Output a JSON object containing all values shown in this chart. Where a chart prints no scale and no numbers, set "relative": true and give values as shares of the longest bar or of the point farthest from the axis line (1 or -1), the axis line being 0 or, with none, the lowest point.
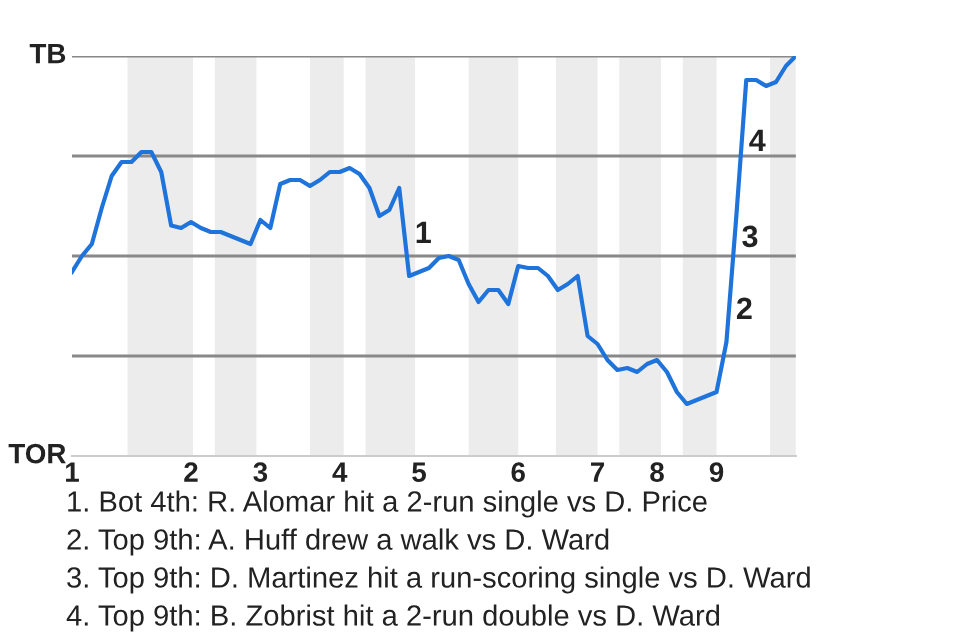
{
  "chart_data": {
    "type": "line",
    "relative": true,
    "categories": [
      "1",
      null,
      null,
      null,
      null,
      null,
      null,
      null,
      null,
      null,
      null,
      null,
      "2",
      null,
      null,
      null,
      null,
      null,
      null,
      "3",
      null,
      null,
      null,
      null,
      null,
      null,
      null,
      "4",
      null,
      null,
      null,
      null,
      null,
      null,
      null,
      "5",
      null,
      null,
      null,
      null,
      null,
      null,
      null,
      null,
      null,
      "6",
      null,
      null,
      null,
      null,
      null,
      null,
      null,
      "7",
      null,
      null,
      null,
      null,
      null,
      "8",
      null,
      null,
      null,
      null,
      null,
      "9",
      null,
      null,
      null,
      null,
      null,
      null,
      null,
      null
    ],
    "series": [
      {
        "color": "#1f74dc",
        "values": [
          0.46,
          0.5,
          0.53,
          0.62,
          0.7,
          0.735,
          0.735,
          0.76,
          0.76,
          0.71,
          0.576,
          0.57,
          0.585,
          0.57,
          0.56,
          0.56,
          0.55,
          0.54,
          0.53,
          0.59,
          0.57,
          0.68,
          0.69,
          0.69,
          0.675,
          0.69,
          0.71,
          0.71,
          0.72,
          0.705,
          0.67,
          0.6,
          0.615,
          0.67,
          0.45,
          0.46,
          0.47,
          0.495,
          0.5,
          0.49,
          0.43,
          0.385,
          0.415,
          0.415,
          0.38,
          0.475,
          0.47,
          0.47,
          0.45,
          0.415,
          0.43,
          0.45,
          0.3,
          0.28,
          0.24,
          0.215,
          0.22,
          0.21,
          0.23,
          0.24,
          0.21,
          0.16,
          0.13,
          0.14,
          0.15,
          0.16,
          0.285,
          0.6,
          0.94,
          0.94,
          0.925,
          0.935,
          0.975,
          1.0
        ]
      }
    ],
    "ref_lines": [
      {
        "axis": "y",
        "value": 0.25,
        "color": "#888888"
      },
      {
        "axis": "y",
        "value": 0.5,
        "color": "#888888"
      },
      {
        "axis": "y",
        "value": 0.75,
        "color": "#888888"
      },
      {
        "axis": "y",
        "value": 1,
        "color": "#888888"
      }
    ],
    "annotations": [
      "TB",
      "TOR",
      {
        "text": "1",
        "x": "5",
        "y": 0.51
      },
      {
        "text": "2",
        "x": "9",
        "y": 0.32
      },
      {
        "text": "3",
        "x": "9",
        "y": 0.5
      },
      {
        "text": "4",
        "x": "9",
        "y": 0.74
      },
      "1. Bot 4th: R. Alomar hit a 2-run single vs D. Price",
      "2. Top 9th: A. Huff drew a walk vs D. Ward",
      "3. Top 9th: D. Martinez hit a run-scoring single vs D. Ward",
      "4. Top 9th: B. Zobrist hit a 2-run double vs D. Ward"
    ]
  }
}
